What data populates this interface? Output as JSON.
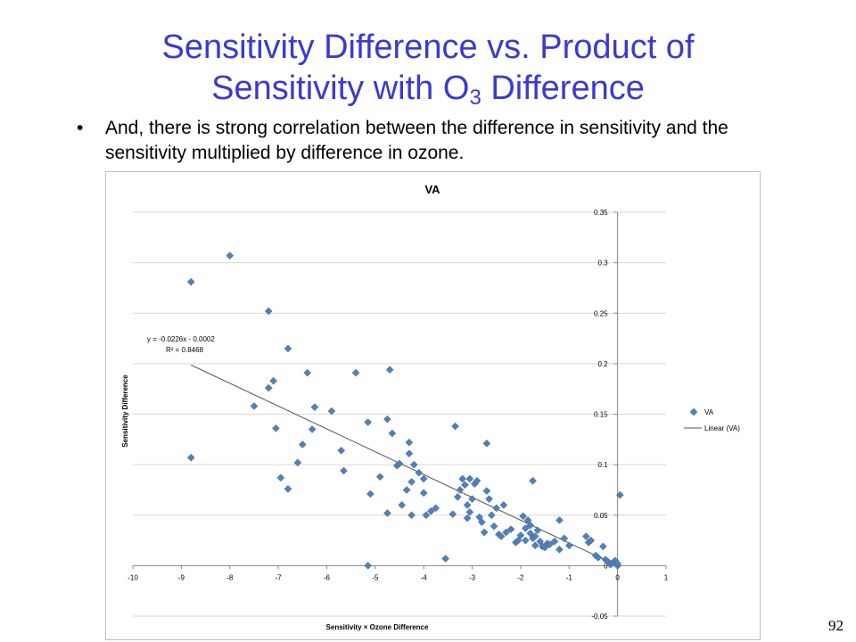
{
  "slide": {
    "title_line1": "Sensitivity Difference vs. Product of",
    "title_line2_pre": "Sensitivity with O",
    "title_line2_sub": "3",
    "title_line2_post": " Difference",
    "bullet_symbol": "•",
    "bullet_text": "And, there is strong correlation between the difference in sensitivity and the sensitivity multiplied by difference in ozone.",
    "page_number": "92"
  },
  "chart_data": {
    "type": "scatter",
    "title": "VA",
    "xlabel": "Sensitivity × Ozone Difference",
    "ylabel": "Sensitivity Difference",
    "xlim": [
      -10,
      1
    ],
    "ylim": [
      -0.05,
      0.35
    ],
    "x_ticks": [
      "-10",
      "-9",
      "-8",
      "-7",
      "-6",
      "-5",
      "-4",
      "-3",
      "-2",
      "-1",
      "0",
      "1"
    ],
    "y_ticks": [
      "-0.05",
      "0",
      "0.05",
      "0.1",
      "0.15",
      "0.2",
      "0.25",
      "0.3",
      "0.35"
    ],
    "grid": "horizontal",
    "legend_position": "right",
    "colors": {
      "marker": "#4f81bd",
      "marker_edge": "#385d8a",
      "trendline": "#555555",
      "grid": "#d9d9d9",
      "axis": "#868686"
    },
    "series": [
      {
        "name": "VA",
        "marker": "diamond",
        "points": [
          [
            -8.8,
            0.281
          ],
          [
            -8.8,
            0.107
          ],
          [
            -8.0,
            0.307
          ],
          [
            -7.2,
            0.252
          ],
          [
            -7.2,
            0.176
          ],
          [
            -7.1,
            0.183
          ],
          [
            -7.05,
            0.136
          ],
          [
            -6.8,
            0.215
          ],
          [
            -6.95,
            0.087
          ],
          [
            -6.8,
            0.076
          ],
          [
            -7.5,
            0.158
          ],
          [
            -6.6,
            0.102
          ],
          [
            -6.5,
            0.12
          ],
          [
            -6.4,
            0.191
          ],
          [
            -6.3,
            0.135
          ],
          [
            -6.25,
            0.157
          ],
          [
            -5.9,
            0.153
          ],
          [
            -5.7,
            0.114
          ],
          [
            -5.65,
            0.094
          ],
          [
            -5.4,
            0.191
          ],
          [
            -5.15,
            0.142
          ],
          [
            -5.1,
            0.071
          ],
          [
            -5.15,
            0.0
          ],
          [
            -4.9,
            0.088
          ],
          [
            -4.75,
            0.145
          ],
          [
            -4.7,
            0.194
          ],
          [
            -4.75,
            0.052
          ],
          [
            -4.65,
            0.131
          ],
          [
            -4.55,
            0.099
          ],
          [
            -4.5,
            0.101
          ],
          [
            -4.45,
            0.06
          ],
          [
            -4.35,
            0.075
          ],
          [
            -4.3,
            0.122
          ],
          [
            -4.3,
            0.111
          ],
          [
            -4.25,
            0.083
          ],
          [
            -4.25,
            0.05
          ],
          [
            -4.2,
            0.1
          ],
          [
            -4.1,
            0.092
          ],
          [
            -4.0,
            0.086
          ],
          [
            -4.0,
            0.072
          ],
          [
            -3.95,
            0.05
          ],
          [
            -3.85,
            0.054
          ],
          [
            -3.75,
            0.057
          ],
          [
            -3.55,
            0.007
          ],
          [
            -3.4,
            0.051
          ],
          [
            -3.35,
            0.138
          ],
          [
            -3.3,
            0.068
          ],
          [
            -3.25,
            0.075
          ],
          [
            -3.2,
            0.086
          ],
          [
            -3.15,
            0.08
          ],
          [
            -3.1,
            0.06
          ],
          [
            -3.1,
            0.047
          ],
          [
            -3.05,
            0.086
          ],
          [
            -3.05,
            0.053
          ],
          [
            -3.0,
            0.066
          ],
          [
            -2.95,
            0.081
          ],
          [
            -2.9,
            0.084
          ],
          [
            -2.85,
            0.048
          ],
          [
            -2.8,
            0.043
          ],
          [
            -2.75,
            0.033
          ],
          [
            -2.7,
            0.121
          ],
          [
            -2.7,
            0.074
          ],
          [
            -2.65,
            0.066
          ],
          [
            -2.6,
            0.05
          ],
          [
            -2.55,
            0.039
          ],
          [
            -2.5,
            0.057
          ],
          [
            -2.45,
            0.031
          ],
          [
            -2.4,
            0.029
          ],
          [
            -2.35,
            0.06
          ],
          [
            -2.3,
            0.033
          ],
          [
            -2.2,
            0.036
          ],
          [
            -2.1,
            0.023
          ],
          [
            -2.05,
            0.025
          ],
          [
            -2.0,
            0.03
          ],
          [
            -1.95,
            0.049
          ],
          [
            -1.9,
            0.037
          ],
          [
            -1.9,
            0.025
          ],
          [
            -1.85,
            0.045
          ],
          [
            -1.8,
            0.032
          ],
          [
            -1.8,
            0.04
          ],
          [
            -1.75,
            0.084
          ],
          [
            -1.75,
            0.027
          ],
          [
            -1.7,
            0.029
          ],
          [
            -1.7,
            0.02
          ],
          [
            -1.65,
            0.035
          ],
          [
            -1.6,
            0.024
          ],
          [
            -1.55,
            0.019
          ],
          [
            -1.5,
            0.018
          ],
          [
            -1.45,
            0.022
          ],
          [
            -1.4,
            0.021
          ],
          [
            -1.3,
            0.024
          ],
          [
            -1.2,
            0.045
          ],
          [
            -1.2,
            0.016
          ],
          [
            -1.1,
            0.027
          ],
          [
            -1.0,
            0.02
          ],
          [
            -0.65,
            0.029
          ],
          [
            -0.6,
            0.023
          ],
          [
            -0.55,
            0.025
          ],
          [
            -0.45,
            0.01
          ],
          [
            -0.4,
            0.008
          ],
          [
            -0.3,
            0.019
          ],
          [
            -0.25,
            0.006
          ],
          [
            -0.2,
            0.004
          ],
          [
            -0.15,
            0.001
          ],
          [
            -0.1,
            0.003
          ],
          [
            -0.05,
            0.005
          ],
          [
            0.0,
            0.0
          ],
          [
            0.0,
            0.002
          ],
          [
            0.05,
            0.07
          ]
        ]
      }
    ],
    "trendline": {
      "name": "Linear (VA)",
      "equation": "y = -0.0226x - 0.0002",
      "r_squared": "R² = 0.8468",
      "slope": -0.0226,
      "intercept": -0.0002,
      "x_range": [
        -8.8,
        0
      ]
    }
  }
}
